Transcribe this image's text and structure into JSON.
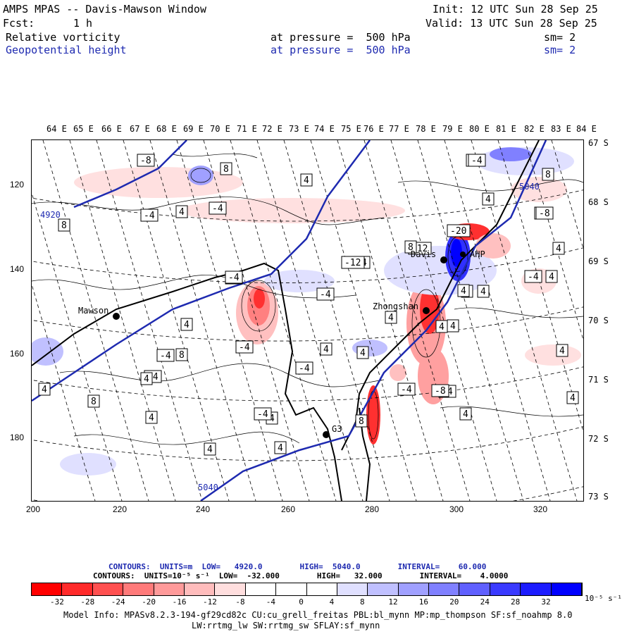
{
  "header": {
    "model_title": "AMPS MPAS -- Davis-Mawson Window",
    "init": "Init: 12 UTC Sun 28 Sep 25",
    "fcst_label": "Fcst:",
    "fcst_value": "1 h",
    "valid": "Valid: 13 UTC Sun 28 Sep 25",
    "field1_name": "Relative vorticity",
    "field1_level": "at pressure =  500 hPa",
    "field1_sm": "sm= 2",
    "field2_name": "Geopotential height",
    "field2_level": "at pressure =  500 hPa",
    "field2_sm": "sm= 2"
  },
  "map": {
    "lon_labels": [
      "64 E",
      "65 E",
      "66 E",
      "67 E",
      "68 E",
      "69 E",
      "70 E",
      "71 E",
      "72 E",
      "73 E",
      "74 E",
      "75 E",
      "76 E",
      "77 E",
      "78 E",
      "79 E",
      "80 E",
      "81 E",
      "82 E",
      "83 E",
      "84 E"
    ],
    "lat_labels": [
      "67 S",
      "68 S",
      "69 S",
      "70 S",
      "71 S",
      "72 S",
      "73 S"
    ],
    "y_ticks": [
      "120",
      "140",
      "160",
      "180"
    ],
    "x_ticks": [
      "200",
      "220",
      "240",
      "260",
      "280",
      "300",
      "320"
    ],
    "stations": [
      {
        "name": "Mawson"
      },
      {
        "name": "Davis"
      },
      {
        "name": "Zhongshan"
      },
      {
        "name": "G3"
      },
      {
        "name": "AHP"
      }
    ],
    "height_labels": [
      "4920",
      "5040",
      "5040"
    ],
    "vort_labels": [
      "-8",
      "8",
      "4",
      "-4",
      "-4",
      "4",
      "-4",
      "-4",
      "-4",
      "-4",
      "4",
      "4",
      "-4",
      "-4",
      "4",
      "8",
      "4",
      "8",
      "4",
      "4",
      "4",
      "8",
      "4",
      "4",
      "4",
      "-4",
      "4",
      "4",
      "-4",
      "8",
      "4",
      "4",
      "-8",
      "4",
      "4",
      "-12",
      "-20",
      "-4",
      "4",
      "8",
      "-12",
      "-4",
      "4",
      "4",
      "4",
      "8",
      "-4",
      "4",
      "-8",
      "4",
      "-4",
      "4",
      "-8"
    ]
  },
  "footer": {
    "contours_height": "CONTOURS:  UNITS=m  LOW=   4920.0        HIGH=  5040.0        INTERVAL=    60.000",
    "contours_vort": "CONTOURS:  UNITS=10⁻⁵ s⁻¹  LOW=  -32.000        HIGH=   32.000        INTERVAL=    4.0000",
    "colorbar_labels": [
      "-32",
      "-28",
      "-24",
      "-20",
      "-16",
      "-12",
      "-8",
      "-4",
      "0",
      "4",
      "8",
      "12",
      "16",
      "20",
      "24",
      "28",
      "32"
    ],
    "colorbar_units": "10⁻⁵ s⁻¹",
    "colorbar_colors": [
      "#ff0000",
      "#ff3030",
      "#ff5a5a",
      "#ff8080",
      "#ffa0a0",
      "#ffc0c0",
      "#ffe0e0",
      "#ffffff",
      "#ffffff",
      "#e0e0ff",
      "#c0c0ff",
      "#a0a0ff",
      "#8080ff",
      "#5a5aff",
      "#3030ff",
      "#1010ff",
      "#0000ff"
    ],
    "model_info": "Model Info: MPASv8.2.3-194-gf29cd82c CU:cu_grell_freitas PBL:bl_mynn MP:mp_thompson SF:sf_noahmp 8.0",
    "model_info2": "LW:rrtmg_lw SW:rrtmg_sw SFLAY:sf_mynn"
  }
}
